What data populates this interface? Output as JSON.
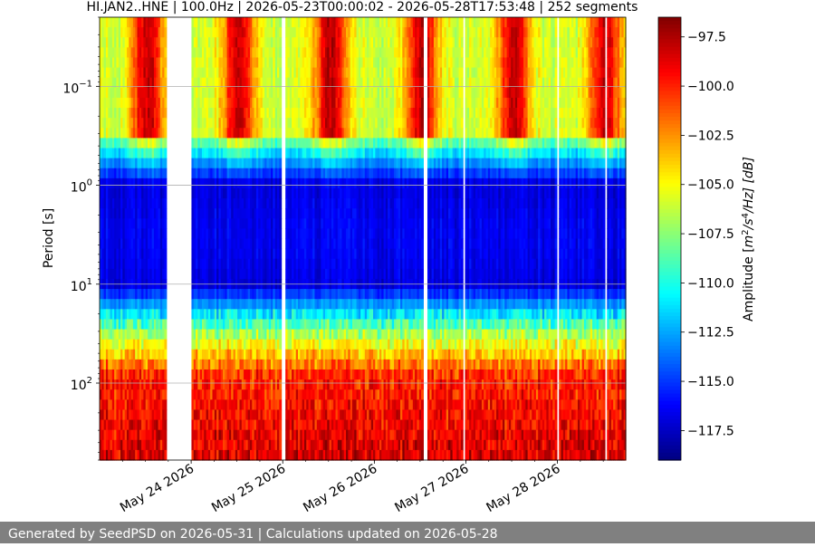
{
  "chart_data": {
    "type": "heatmap",
    "title": "HI.JAN2..HNE | 100.0Hz | 2026-05-23T00:00:02 - 2026-05-28T17:53:48 | 252 segments",
    "ylabel": "Period [s]",
    "colorbar_label": "Amplitude [m²/s⁴/Hz] [dB]",
    "colorbar_label_parts": {
      "prefix": "Amplitude [",
      "m": "m",
      "m_exp": "2",
      "slash1": "/",
      "s": "s",
      "s_exp": "4",
      "suffix": "/Hz] [dB]"
    },
    "x_range_days": [
      "2026-05-23T00:00:02",
      "2026-05-28T17:53:48"
    ],
    "x_ticks": [
      {
        "date": "2026-05-24",
        "label": "May 24 2026"
      },
      {
        "date": "2026-05-25",
        "label": "May 25 2026"
      },
      {
        "date": "2026-05-26",
        "label": "May 26 2026"
      },
      {
        "date": "2026-05-27",
        "label": "May 27 2026"
      },
      {
        "date": "2026-05-28",
        "label": "May 28 2026"
      }
    ],
    "y_scale": "log",
    "y_inverted": true,
    "y_range": [
      0.02,
      600
    ],
    "y_ticks": [
      {
        "value": 0.1,
        "base": "10",
        "exp": "−1"
      },
      {
        "value": 1,
        "base": "10",
        "exp": "0"
      },
      {
        "value": 10,
        "base": "10",
        "exp": "1"
      },
      {
        "value": 100,
        "base": "10",
        "exp": "2"
      }
    ],
    "grid": true,
    "colormap": "jet",
    "color_range_db": [
      -119,
      -96.5
    ],
    "colorbar_ticks": [
      "−97.5",
      "−100.0",
      "−102.5",
      "−105.0",
      "−107.5",
      "−110.0",
      "−112.5",
      "−115.0",
      "−117.5"
    ],
    "colorbar_tick_values": [
      -97.5,
      -100.0,
      -102.5,
      -105.0,
      -107.5,
      -110.0,
      -112.5,
      -115.0,
      -117.5
    ],
    "data_gaps": [
      [
        "2026-05-23T17:30:00",
        "2026-05-23T23:55:00"
      ],
      [
        "2026-05-24T23:50:00",
        "2026-05-25T00:30:00"
      ],
      [
        "2026-05-26T13:00:00",
        "2026-05-26T13:40:00"
      ],
      [
        "2026-05-26T23:00:00",
        "2026-05-26T23:50:00"
      ],
      [
        "2026-05-27T23:50:00",
        "2026-05-28T00:25:00"
      ],
      [
        "2026-05-28T12:20:00",
        "2026-05-28T12:55:00"
      ]
    ],
    "approx_levels_db": {
      "period_0.03_to_0.3_s_day": -98,
      "period_0.03_to_0.3_s_night": -106,
      "period_1_to_10_s": -117,
      "period_30_s": -107,
      "period_100_to_600_s": -99
    }
  },
  "footer": {
    "text": "Generated by SeedPSD on 2026-05-31 | Calculations updated on 2026-05-28"
  }
}
